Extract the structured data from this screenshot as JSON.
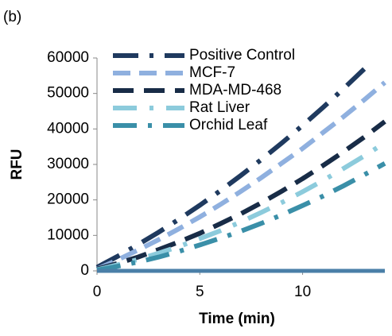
{
  "chart_data": {
    "type": "line",
    "panel_label": "(b)",
    "xlabel": "Time (min)",
    "ylabel": "RFU",
    "x": [
      0,
      1,
      2,
      3,
      4,
      5,
      6,
      7,
      8,
      9,
      10,
      11,
      12,
      13,
      14
    ],
    "series": [
      {
        "name": "Positive Control",
        "color": "#1f3a5f",
        "values": [
          1000,
          4100,
          7400,
          10900,
          14600,
          18500,
          22600,
          26900,
          31400,
          36100,
          41000,
          46100,
          51400,
          56900,
          null
        ]
      },
      {
        "name": "MCF-7",
        "color": "#8fb0df",
        "values": [
          500,
          3100,
          5900,
          8800,
          11900,
          15200,
          18700,
          22400,
          26300,
          30400,
          34500,
          39000,
          43500,
          48200,
          53100
        ]
      },
      {
        "name": "MDA-MD-468",
        "color": "#182c47",
        "values": [
          500,
          2100,
          3900,
          6000,
          8200,
          10600,
          13300,
          16100,
          19200,
          22500,
          26000,
          29700,
          33600,
          37700,
          42100
        ]
      },
      {
        "name": "Rat Liver",
        "color": "#8ccbdc",
        "values": [
          300,
          1700,
          3200,
          5000,
          6900,
          9100,
          11300,
          13800,
          16500,
          19300,
          22300,
          25500,
          28900,
          32400,
          36100
        ]
      },
      {
        "name": "Orchid Leaf",
        "color": "#3a8fa8",
        "values": [
          200,
          1300,
          2500,
          3900,
          5500,
          7300,
          9200,
          11200,
          13400,
          15800,
          18400,
          21100,
          24000,
          27100,
          30300
        ]
      }
    ],
    "xlim": [
      0,
      14
    ],
    "xticks": [
      0,
      5,
      10
    ],
    "ylim": [
      0,
      60000
    ],
    "yticks": [
      0,
      10000,
      20000,
      30000,
      40000,
      50000,
      60000
    ],
    "grid": false,
    "legend": "upper left"
  }
}
